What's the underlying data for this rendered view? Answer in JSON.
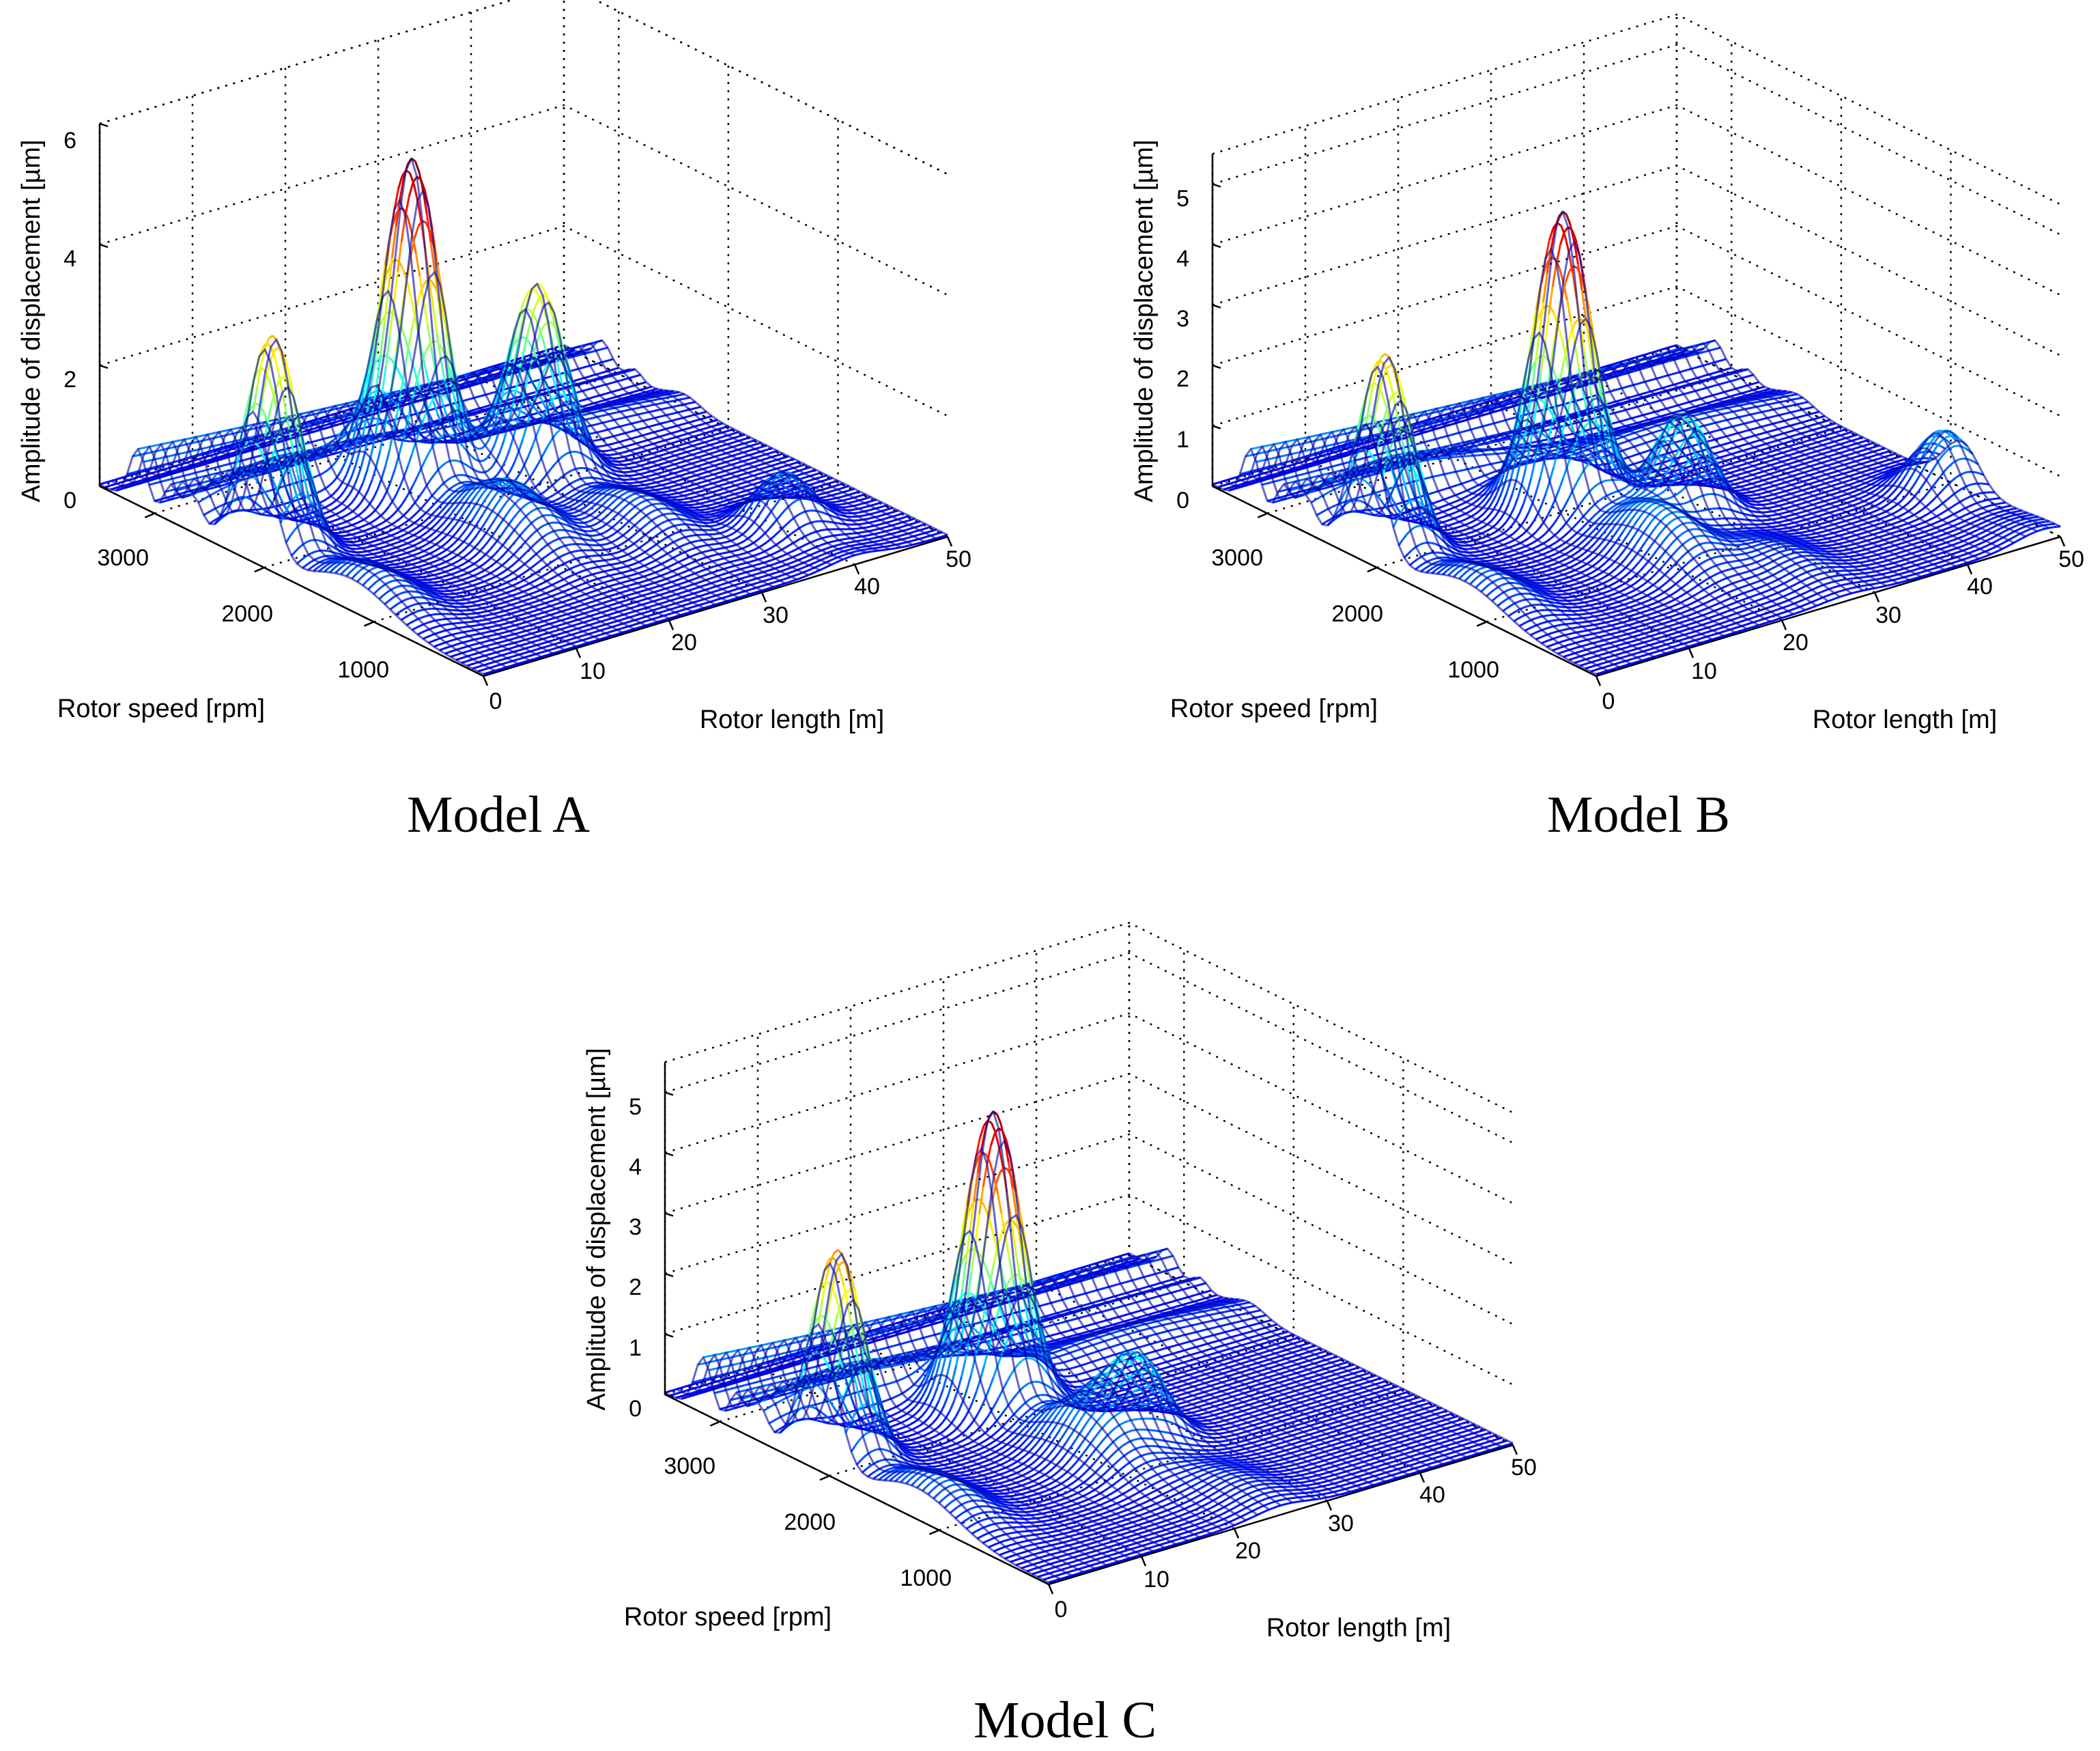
{
  "figure": {
    "colors": {
      "low": "#00007f",
      "high": "#800000",
      "ink": "#000000",
      "background": "#ffffff"
    }
  },
  "chart_data": [
    {
      "type": "surface",
      "panel": "model-a",
      "title": "Model A",
      "xlabel": "Rotor length [m]",
      "ylabel": "Rotor speed [rpm]",
      "zlabel": "Amplitude of displacement [µm]",
      "xticks": [
        "0",
        "10",
        "20",
        "30",
        "40",
        "50"
      ],
      "yticks": [
        "1000",
        "2000",
        "3000"
      ],
      "zticks": [
        "0",
        "2",
        "4",
        "6"
      ],
      "xlim": [
        0,
        50
      ],
      "ylim": [
        0,
        3500
      ],
      "zlim": [
        0,
        6
      ],
      "peaks": [
        {
          "rotor_length_m": 2,
          "rotor_speed_rpm": 2100,
          "amplitude_um": 3.6
        },
        {
          "rotor_length_m": 20,
          "rotor_speed_rpm": 2350,
          "amplitude_um": 5.3
        },
        {
          "rotor_length_m": 30,
          "rotor_speed_rpm": 2050,
          "amplitude_um": 3.2
        },
        {
          "rotor_length_m": 40,
          "rotor_speed_rpm": 650,
          "amplitude_um": 0.9
        }
      ]
    },
    {
      "type": "surface",
      "panel": "model-b",
      "title": "Model B",
      "xlabel": "Rotor length [m]",
      "ylabel": "Rotor speed [rpm]",
      "zlabel": "Amplitude of displacement [µm]",
      "xticks": [
        "0",
        "10",
        "20",
        "30",
        "40",
        "50"
      ],
      "yticks": [
        "1000",
        "2000",
        "3000"
      ],
      "zticks": [
        "0",
        "1",
        "2",
        "3",
        "4",
        "5"
      ],
      "xlim": [
        0,
        50
      ],
      "ylim": [
        0,
        3500
      ],
      "zlim": [
        0,
        5.5
      ],
      "peaks": [
        {
          "rotor_length_m": 2,
          "rotor_speed_rpm": 2100,
          "amplitude_um": 3.3
        },
        {
          "rotor_length_m": 20,
          "rotor_speed_rpm": 2000,
          "amplitude_um": 4.9
        },
        {
          "rotor_length_m": 27,
          "rotor_speed_rpm": 1500,
          "amplitude_um": 1.7
        },
        {
          "rotor_length_m": 48,
          "rotor_speed_rpm": 900,
          "amplitude_um": 1.0
        }
      ]
    },
    {
      "type": "surface",
      "panel": "model-c",
      "title": "Model C",
      "xlabel": "Rotor length [m]",
      "ylabel": "Rotor speed [rpm]",
      "zlabel": "Amplitude of displacement [µm]",
      "xticks": [
        "0",
        "10",
        "20",
        "30",
        "40",
        "50"
      ],
      "yticks": [
        "1000",
        "2000",
        "3000"
      ],
      "zticks": [
        "0",
        "1",
        "2",
        "3",
        "4",
        "5"
      ],
      "xlim": [
        0,
        50
      ],
      "ylim": [
        0,
        3500
      ],
      "zlim": [
        0,
        5.5
      ],
      "peaks": [
        {
          "rotor_length_m": 2,
          "rotor_speed_rpm": 2100,
          "amplitude_um": 3.5
        },
        {
          "rotor_length_m": 20,
          "rotor_speed_rpm": 2200,
          "amplitude_um": 4.8
        },
        {
          "rotor_length_m": 25,
          "rotor_speed_rpm": 1300,
          "amplitude_um": 1.3
        }
      ]
    }
  ]
}
